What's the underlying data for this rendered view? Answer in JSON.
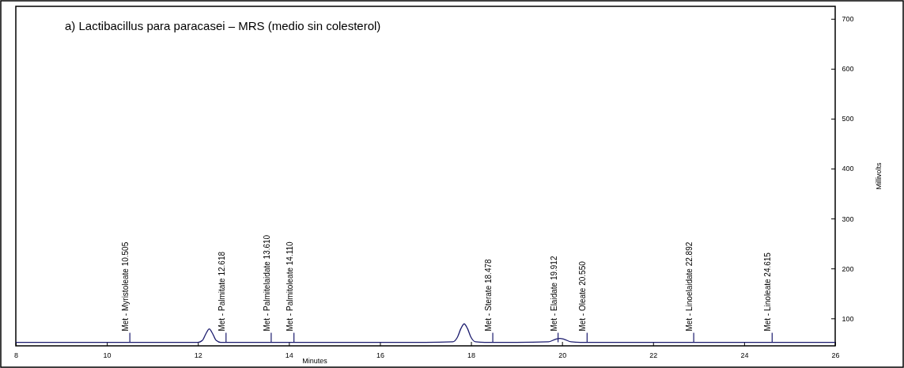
{
  "chart_data": {
    "type": "line",
    "title": "a) Lactibacillus para paracasei – MRS (medio sin colesterol)",
    "xlabel": "Minutes",
    "ylabel": "Millivolts",
    "xlim": [
      8,
      26
    ],
    "xticks": [
      8,
      10,
      12,
      14,
      16,
      18,
      20,
      22,
      24,
      26
    ],
    "ylim": [
      45,
      725
    ],
    "yticks": [
      100,
      200,
      300,
      400,
      500,
      600,
      700
    ],
    "series": [
      {
        "color": "#1c1c6e",
        "x": [
          8,
          9,
          10,
          11,
          12,
          12.1,
          12.18,
          12.25,
          12.32,
          12.4,
          12.5,
          13,
          14,
          15,
          16,
          17,
          17.6,
          17.7,
          17.78,
          17.85,
          17.92,
          18.0,
          18.1,
          18.3,
          19,
          19.7,
          19.85,
          19.95,
          20.05,
          20.2,
          20.4,
          21,
          22,
          23,
          24,
          25,
          26
        ],
        "values": [
          52,
          52,
          52,
          52,
          52,
          56,
          70,
          79,
          70,
          56,
          52,
          52,
          52,
          52,
          52,
          52,
          53,
          62,
          80,
          89,
          80,
          62,
          53,
          52,
          52,
          53,
          58,
          60,
          58,
          53,
          52,
          52,
          52,
          52,
          52,
          52,
          52
        ]
      }
    ],
    "annotations": [
      {
        "text": "Met - Myristoleate  10.505",
        "x": 10.505,
        "y": 52
      },
      {
        "text": "Met - Palmitate  12.618",
        "x": 12.618,
        "y": 52
      },
      {
        "text": "Met - Palmitelaidate  13.610",
        "x": 13.61,
        "y": 52
      },
      {
        "text": "Met - Palmitoleate  14.110",
        "x": 14.11,
        "y": 52
      },
      {
        "text": "Met - Sterate  18.478",
        "x": 18.478,
        "y": 52
      },
      {
        "text": "Met - Elaidate  19.912",
        "x": 19.912,
        "y": 52
      },
      {
        "text": "Met - Oleate  20.550",
        "x": 20.55,
        "y": 52
      },
      {
        "text": "Met - Linoelaidate  22.892",
        "x": 22.892,
        "y": 52
      },
      {
        "text": "Met - Linoleate  24.615",
        "x": 24.615,
        "y": 52
      }
    ],
    "grid": false,
    "marker": "none",
    "line_style": "solid"
  }
}
